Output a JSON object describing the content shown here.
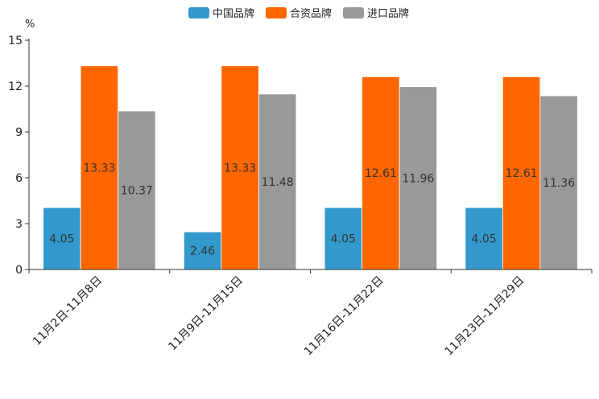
{
  "chart_data": {
    "type": "bar",
    "y_unit": "%",
    "categories": [
      "11月2日-11月8日",
      "11月9日-11月15日",
      "11月16日-11月22日",
      "11月23日-11月29日"
    ],
    "series": [
      {
        "name": "中国品牌",
        "color": "#3399cc",
        "values": [
          4.05,
          2.46,
          4.05,
          4.05
        ],
        "labels": [
          "4.05",
          "2.46",
          "4.05",
          "4.05"
        ]
      },
      {
        "name": "合资品牌",
        "color": "#ff6600",
        "values": [
          13.33,
          13.33,
          12.61,
          12.61
        ],
        "labels": [
          "13.33",
          "13.33",
          "12.61",
          "12.61"
        ]
      },
      {
        "name": "进口品牌",
        "color": "#999999",
        "values": [
          10.37,
          11.48,
          11.96,
          11.36
        ],
        "labels": [
          "10.37",
          "11.48",
          "11.96",
          "11.36"
        ]
      }
    ],
    "y_ticks": [
      0,
      3,
      6,
      9,
      12,
      15
    ],
    "y_tick_labels": [
      "0",
      "3",
      "6",
      "9",
      "12",
      "15"
    ],
    "ylim": [
      0,
      15
    ],
    "legend_position": "top-center",
    "grid": false
  }
}
